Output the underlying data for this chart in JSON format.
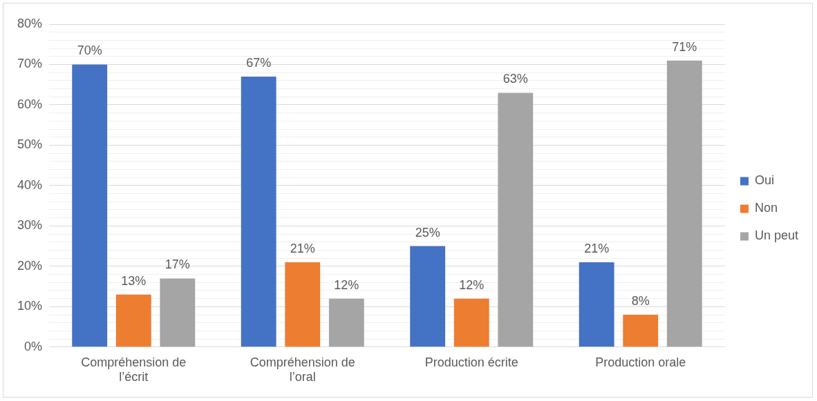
{
  "chart_data": {
    "type": "bar",
    "categories": [
      "Compréhension de l’écrit",
      "Compréhension de l’oral",
      "Production écrite",
      "Production orale"
    ],
    "series": [
      {
        "name": "Oui",
        "color": "#4472c4",
        "values": [
          70,
          67,
          25,
          21
        ]
      },
      {
        "name": "Non",
        "color": "#ed7d31",
        "values": [
          13,
          21,
          12,
          8
        ]
      },
      {
        "name": "Un peut",
        "color": "#a5a5a5",
        "values": [
          17,
          12,
          63,
          71
        ]
      }
    ],
    "ylim": [
      0,
      80
    ],
    "yticks": [
      {
        "value": 0,
        "label": "0%"
      },
      {
        "value": 2,
        "label": null
      },
      {
        "value": 4,
        "label": null
      },
      {
        "value": 6,
        "label": null
      },
      {
        "value": 8,
        "label": null
      },
      {
        "value": 10,
        "label": "10%"
      },
      {
        "value": 12,
        "label": null
      },
      {
        "value": 14,
        "label": null
      },
      {
        "value": 16,
        "label": null
      },
      {
        "value": 18,
        "label": null
      },
      {
        "value": 20,
        "label": "20%"
      },
      {
        "value": 22,
        "label": null
      },
      {
        "value": 24,
        "label": null
      },
      {
        "value": 26,
        "label": null
      },
      {
        "value": 28,
        "label": null
      },
      {
        "value": 30,
        "label": "30%"
      },
      {
        "value": 32,
        "label": null
      },
      {
        "value": 34,
        "label": null
      },
      {
        "value": 36,
        "label": null
      },
      {
        "value": 38,
        "label": null
      },
      {
        "value": 40,
        "label": "40%"
      },
      {
        "value": 42,
        "label": null
      },
      {
        "value": 44,
        "label": null
      },
      {
        "value": 46,
        "label": null
      },
      {
        "value": 48,
        "label": null
      },
      {
        "value": 50,
        "label": "50%"
      },
      {
        "value": 52,
        "label": null
      },
      {
        "value": 54,
        "label": null
      },
      {
        "value": 56,
        "label": null
      },
      {
        "value": 58,
        "label": null
      },
      {
        "value": 60,
        "label": "60%"
      },
      {
        "value": 62,
        "label": null
      },
      {
        "value": 64,
        "label": null
      },
      {
        "value": 66,
        "label": null
      },
      {
        "value": 68,
        "label": null
      },
      {
        "value": 70,
        "label": "70%"
      },
      {
        "value": 72,
        "label": null
      },
      {
        "value": 74,
        "label": null
      },
      {
        "value": 76,
        "label": null
      },
      {
        "value": 78,
        "label": null
      },
      {
        "value": 80,
        "label": "80%"
      }
    ],
    "value_labels": [
      [
        "70%",
        "67%",
        "25%",
        "21%"
      ],
      [
        "13%",
        "21%",
        "12%",
        "8%"
      ],
      [
        "17%",
        "12%",
        "63%",
        "71%"
      ]
    ],
    "grid": "y",
    "legend": "right"
  }
}
